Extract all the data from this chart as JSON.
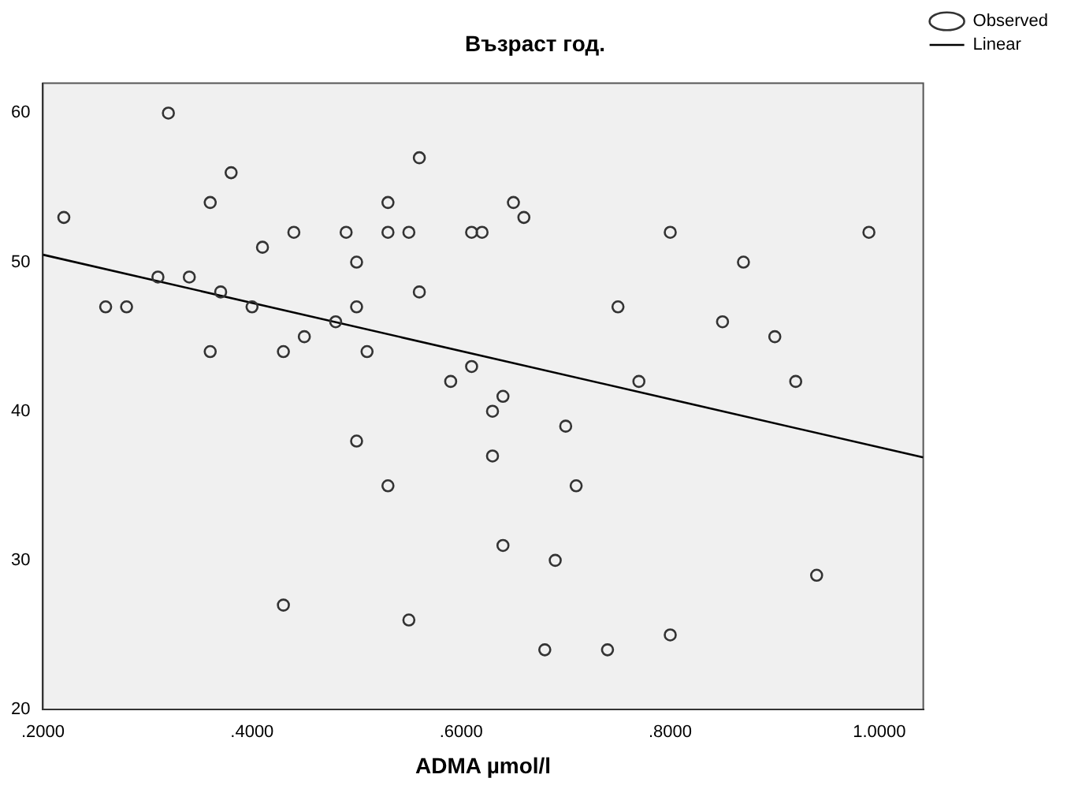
{
  "chart_data": {
    "type": "scatter",
    "title": "Възраст год.",
    "xlabel": "ADMA µmol/l",
    "xlim": [
      0.2,
      1.042
    ],
    "ylim": [
      20,
      62
    ],
    "xticks": [
      {
        "value": 0.2,
        "label": ".2000"
      },
      {
        "value": 0.4,
        "label": ".4000"
      },
      {
        "value": 0.6,
        "label": ".6000"
      },
      {
        "value": 0.8,
        "label": ".8000"
      },
      {
        "value": 1.0,
        "label": "1.0000"
      }
    ],
    "yticks": [
      20,
      30,
      40,
      50,
      60
    ],
    "grid": false,
    "legend": "top right",
    "marker": "circle",
    "series": [
      {
        "name": "Observed",
        "color": "#333333",
        "x": [
          0.22,
          0.26,
          0.28,
          0.31,
          0.32,
          0.34,
          0.36,
          0.36,
          0.37,
          0.38,
          0.4,
          0.41,
          0.43,
          0.44,
          0.45,
          0.48,
          0.49,
          0.5,
          0.5,
          0.5,
          0.51,
          0.53,
          0.53,
          0.53,
          0.55,
          0.56,
          0.56,
          0.43,
          0.55,
          0.59,
          0.61,
          0.61,
          0.62,
          0.63,
          0.63,
          0.64,
          0.64,
          0.65,
          0.66,
          0.68,
          0.7,
          0.69,
          0.71,
          0.74,
          0.75,
          0.77,
          0.8,
          0.8,
          0.85,
          0.87,
          0.9,
          0.92,
          0.94,
          0.99
        ],
        "values": [
          53,
          47,
          47,
          49,
          60,
          49,
          54,
          44,
          48,
          56,
          47,
          51,
          44,
          52,
          45,
          46,
          52,
          50,
          47,
          38,
          44,
          54,
          52,
          35,
          52,
          57,
          48,
          27,
          26,
          42,
          52,
          43,
          52,
          40,
          37,
          41,
          31,
          54,
          53,
          24,
          39,
          30,
          35,
          24,
          47,
          42,
          52,
          25,
          46,
          50,
          45,
          42,
          29,
          52
        ]
      },
      {
        "name": "Linear",
        "type": "line",
        "color": "#000000",
        "marker": "none",
        "line_style": "solid",
        "x": [
          0.2,
          1.042
        ],
        "values": [
          50.5,
          36.9
        ]
      }
    ]
  }
}
